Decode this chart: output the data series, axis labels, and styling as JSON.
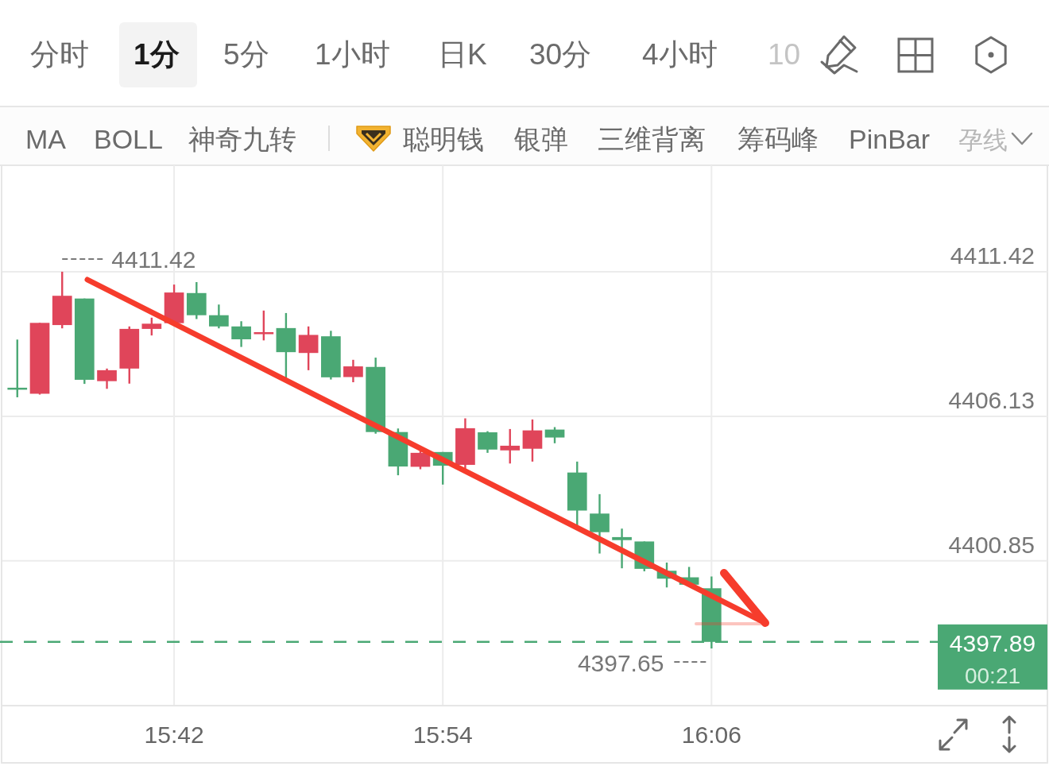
{
  "chart_data": [
    {
      "type": "other",
      "annotations": [
        "分时",
        "1分",
        "5分",
        "1小时",
        "日K",
        "30分",
        "4小时",
        "10"
      ]
    },
    {
      "type": "other",
      "annotations": [
        "MA",
        "BOLL",
        "神奇九转",
        "聪明钱",
        "银弹",
        "三维背离",
        "筹码峰",
        "PinBar",
        "孕线"
      ]
    },
    {
      "type": "candlestick",
      "x": [
        15.5833,
        15.6,
        15.6167,
        15.6333,
        15.65,
        15.6667,
        15.6833,
        15.7,
        15.7167,
        15.7333,
        15.75,
        15.7667,
        15.7833,
        15.8,
        15.8167,
        15.8333,
        15.85,
        15.8667,
        15.8833,
        15.9,
        15.9167,
        15.9333,
        15.95,
        15.9667,
        15.9833,
        16.0,
        16.0167,
        16.0333,
        16.05,
        16.0667,
        16.0833,
        16.1
      ],
      "ohlc": [
        [
          4407.18,
          4408.94,
          4406.83,
          4407.12
        ],
        [
          4406.96,
          4409.55,
          4406.93,
          4409.55
        ],
        [
          4409.47,
          4411.42,
          4409.35,
          4410.54
        ],
        [
          4410.44,
          4410.44,
          4407.32,
          4407.47
        ],
        [
          4407.42,
          4407.88,
          4407.14,
          4407.82
        ],
        [
          4407.88,
          4409.42,
          4407.33,
          4409.33
        ],
        [
          4409.33,
          4409.74,
          4409.09,
          4409.52
        ],
        [
          4409.54,
          4410.95,
          4409.5,
          4410.66
        ],
        [
          4410.64,
          4411.04,
          4409.69,
          4409.83
        ],
        [
          4409.83,
          4410.22,
          4409.35,
          4409.42
        ],
        [
          4409.42,
          4409.61,
          4408.67,
          4408.95
        ],
        [
          4409.17,
          4410.0,
          4408.91,
          4409.21
        ],
        [
          4409.36,
          4409.91,
          4407.54,
          4408.48
        ],
        [
          4408.45,
          4409.42,
          4407.82,
          4409.11
        ],
        [
          4409.06,
          4409.26,
          4407.48,
          4407.56
        ],
        [
          4407.57,
          4408.2,
          4407.38,
          4407.96
        ],
        [
          4407.94,
          4408.28,
          4405.5,
          4405.56
        ],
        [
          4405.56,
          4405.69,
          4403.98,
          4404.3
        ],
        [
          4404.29,
          4404.87,
          4404.2,
          4404.8
        ],
        [
          4404.83,
          4404.83,
          4403.64,
          4404.33
        ],
        [
          4404.36,
          4406.06,
          4404.22,
          4405.7
        ],
        [
          4405.55,
          4405.59,
          4404.8,
          4404.92
        ],
        [
          4404.89,
          4405.67,
          4404.41,
          4405.06
        ],
        [
          4404.95,
          4406.02,
          4404.48,
          4405.62
        ],
        [
          4405.65,
          4405.74,
          4405.15,
          4405.36
        ],
        [
          4404.08,
          4404.48,
          4402.14,
          4402.69
        ],
        [
          4402.58,
          4403.29,
          4401.12,
          4401.9
        ],
        [
          4401.72,
          4402.03,
          4400.58,
          4401.61
        ],
        [
          4401.56,
          4401.56,
          4400.47,
          4400.56
        ],
        [
          4400.49,
          4400.79,
          4399.88,
          4400.2
        ],
        [
          4400.25,
          4400.63,
          4399.96,
          4399.98
        ],
        [
          4399.85,
          4400.28,
          4397.65,
          4397.89
        ]
      ],
      "colors": [
        "#4aa874",
        "#e0455a",
        "#e0455a",
        "#4aa874",
        "#e0455a",
        "#e0455a",
        "#e0455a",
        "#e0455a",
        "#4aa874",
        "#4aa874",
        "#4aa874",
        "#e0455a",
        "#4aa874",
        "#e0455a",
        "#4aa874",
        "#e0455a",
        "#4aa874",
        "#4aa874",
        "#e0455a",
        "#4aa874",
        "#e0455a",
        "#4aa874",
        "#e0455a",
        "#e0455a",
        "#4aa874",
        "#4aa874",
        "#4aa874",
        "#4aa874",
        "#4aa874",
        "#4aa874",
        "#4aa874",
        "#4aa874"
      ],
      "xlim": [
        15.5722,
        16.35
      ],
      "xticks": [
        {
          "value": 15.7,
          "label": "15:42"
        },
        {
          "value": 15.9,
          "label": "15:54"
        },
        {
          "value": 16.1,
          "label": "16:06"
        }
      ],
      "ylim": [
        4395.56,
        4415.31
      ],
      "yticks": [
        4411.42,
        4406.13,
        4400.85,
        {
          "value": 4395.56,
          "label": null
        }
      ],
      "grid": true,
      "ref_lines": [
        {
          "axis": "y",
          "value": 4397.89,
          "label": "4397.89",
          "color": "#4aa874",
          "line_style": "dashed"
        }
      ],
      "annotations": [
        {
          "text": "4411.42",
          "x": 15.6167,
          "y": 4411.42
        },
        {
          "text": "4397.65",
          "x": 16.1,
          "y": 4397.65
        },
        "00:21"
      ]
    }
  ]
}
